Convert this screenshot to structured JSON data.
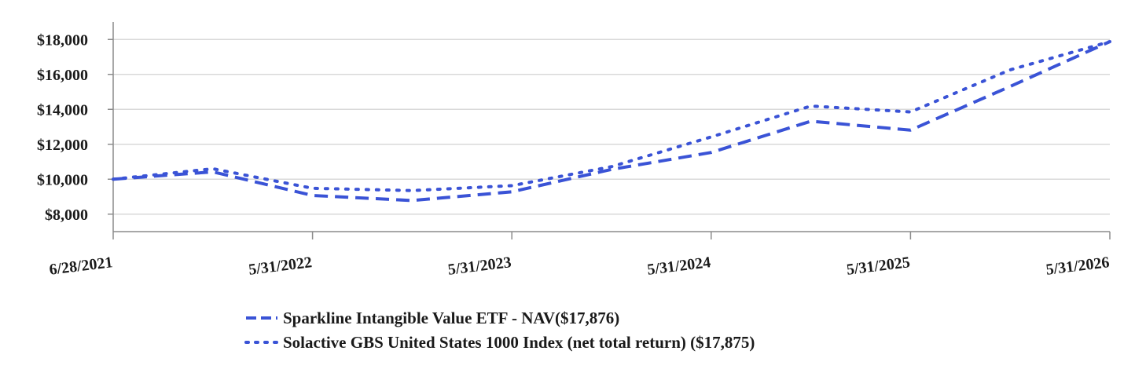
{
  "chart_data": {
    "type": "line",
    "x": [
      "6/28/2021",
      "12/31/2021",
      "5/31/2022",
      "11/30/2022",
      "5/31/2023",
      "11/30/2023",
      "5/31/2024",
      "11/30/2024",
      "5/31/2025",
      "11/30/2025",
      "5/31/2026"
    ],
    "x_tick_labels": [
      "6/28/2021",
      "5/31/2022",
      "5/31/2023",
      "5/31/2024",
      "5/31/2025",
      "5/31/2026"
    ],
    "y_tick_labels": [
      "$8,000",
      "$10,000",
      "$12,000",
      "$14,000",
      "$16,000",
      "$18,000"
    ],
    "y_ticks": [
      8000,
      10000,
      12000,
      14000,
      16000,
      18000
    ],
    "ylim": [
      7000,
      19000
    ],
    "grid": true,
    "legend_position": "bottom",
    "series": [
      {
        "name": "Sparkline Intangible Value ETF - NAV($17,876)",
        "style": "dashed",
        "color": "#3a53d6",
        "values": [
          10000,
          10420,
          9070,
          8780,
          9280,
          10560,
          11530,
          13320,
          12810,
          15310,
          17876
        ]
      },
      {
        "name": "Solactive GBS United States 1000 Index (net total return) ($17,875)",
        "style": "dotted",
        "color": "#3a53d6",
        "values": [
          10000,
          10600,
          9480,
          9350,
          9630,
          10720,
          12420,
          14190,
          13850,
          16260,
          17875
        ]
      }
    ]
  }
}
